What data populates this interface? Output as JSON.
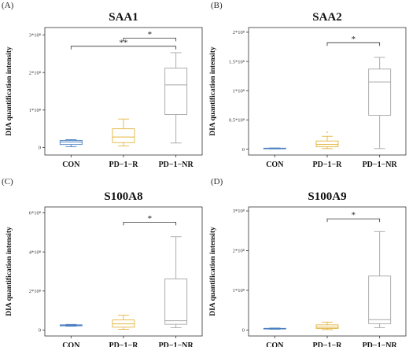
{
  "panels": [
    {
      "label": "(A)"
    },
    {
      "label": "(B)"
    },
    {
      "label": "(C)"
    },
    {
      "label": "(D)"
    }
  ],
  "chart_data": [
    {
      "type": "boxplot",
      "title": "SAA1",
      "ylabel": "DIA quantification intensity",
      "ylim": [
        -0.2,
        3.2
      ],
      "yticks": [
        {
          "v": 0,
          "label": "0"
        },
        {
          "v": 1,
          "label": "1*10⁸"
        },
        {
          "v": 2,
          "label": "2*10⁸"
        },
        {
          "v": 3,
          "label": "3*10⁸"
        }
      ],
      "categories": [
        "CON",
        "PD−1−R",
        "PD−1−NR"
      ],
      "colors": [
        "#4a7fc1",
        "#e2b53e",
        "#a6a6a6"
      ],
      "boxes": [
        {
          "min": 0.02,
          "q1": 0.08,
          "median": 0.15,
          "q3": 0.19,
          "max": 0.21
        },
        {
          "min": 0.04,
          "q1": 0.13,
          "median": 0.28,
          "q3": 0.5,
          "max": 0.76
        },
        {
          "min": 0.12,
          "q1": 0.88,
          "median": 1.67,
          "q3": 2.12,
          "max": 2.53
        }
      ],
      "outliers": [
        [],
        [],
        []
      ],
      "significance": [
        {
          "from": 1,
          "to": 2,
          "label": "*",
          "y": 2.92
        },
        {
          "from": 0,
          "to": 2,
          "label": "**",
          "y": 2.7
        }
      ]
    },
    {
      "type": "boxplot",
      "title": "SAA2",
      "ylabel": "DIA quantification intensity",
      "ylim": [
        -0.1,
        2.08
      ],
      "yticks": [
        {
          "v": 0,
          "label": "0"
        },
        {
          "v": 0.5,
          "label": "0.5*10⁸"
        },
        {
          "v": 1,
          "label": "1*10⁸"
        },
        {
          "v": 1.5,
          "label": "1.5*10⁸"
        },
        {
          "v": 2,
          "label": "2*10⁸"
        }
      ],
      "categories": [
        "CON",
        "PD−1−R",
        "PD−1−NR"
      ],
      "colors": [
        "#4a7fc1",
        "#e2b53e",
        "#a6a6a6"
      ],
      "boxes": [
        {
          "min": 0.005,
          "q1": 0.008,
          "median": 0.012,
          "q3": 0.017,
          "max": 0.02
        },
        {
          "min": 0.01,
          "q1": 0.04,
          "median": 0.08,
          "q3": 0.14,
          "max": 0.22
        },
        {
          "min": 0.01,
          "q1": 0.58,
          "median": 1.15,
          "q3": 1.37,
          "max": 1.57
        }
      ],
      "outliers": [
        [],
        [
          0.29
        ],
        []
      ],
      "significance": [
        {
          "from": 1,
          "to": 2,
          "label": "*",
          "y": 1.82
        }
      ]
    },
    {
      "type": "boxplot",
      "title": "S100A8",
      "ylabel": "DIA quantification intensity",
      "ylim": [
        -0.3,
        6.3
      ],
      "yticks": [
        {
          "v": 0,
          "label": "0"
        },
        {
          "v": 2,
          "label": "2*10⁸"
        },
        {
          "v": 4,
          "label": "4*10⁸"
        },
        {
          "v": 6,
          "label": "6*10⁸"
        }
      ],
      "categories": [
        "CON",
        "PD−1−R",
        "PD−1−NR"
      ],
      "colors": [
        "#4a7fc1",
        "#e2b53e",
        "#a6a6a6"
      ],
      "boxes": [
        {
          "min": 0.2,
          "q1": 0.22,
          "median": 0.25,
          "q3": 0.27,
          "max": 0.29
        },
        {
          "min": 0.04,
          "q1": 0.15,
          "median": 0.32,
          "q3": 0.52,
          "max": 0.76
        },
        {
          "min": 0.12,
          "q1": 0.3,
          "median": 0.48,
          "q3": 2.62,
          "max": 4.78
        }
      ],
      "outliers": [
        [],
        [],
        []
      ],
      "significance": [
        {
          "from": 1,
          "to": 2,
          "label": "*",
          "y": 5.52
        }
      ]
    },
    {
      "type": "boxplot",
      "title": "S100A9",
      "ylabel": "DIA quantification intensity",
      "ylim": [
        -0.15,
        3.1
      ],
      "yticks": [
        {
          "v": 0,
          "label": "0"
        },
        {
          "v": 1,
          "label": "1*10⁸"
        },
        {
          "v": 2,
          "label": "2*10⁸"
        },
        {
          "v": 3,
          "label": "3*10⁸"
        }
      ],
      "categories": [
        "CON",
        "PD−1−R",
        "PD−1−NR"
      ],
      "colors": [
        "#4a7fc1",
        "#e2b53e",
        "#a6a6a6"
      ],
      "boxes": [
        {
          "min": 0.02,
          "q1": 0.028,
          "median": 0.035,
          "q3": 0.042,
          "max": 0.05
        },
        {
          "min": 0.01,
          "q1": 0.04,
          "median": 0.07,
          "q3": 0.13,
          "max": 0.2
        },
        {
          "min": 0.06,
          "q1": 0.16,
          "median": 0.26,
          "q3": 1.36,
          "max": 2.48
        }
      ],
      "outliers": [
        [],
        [],
        []
      ],
      "significance": [
        {
          "from": 1,
          "to": 2,
          "label": "*",
          "y": 2.8
        }
      ]
    }
  ]
}
